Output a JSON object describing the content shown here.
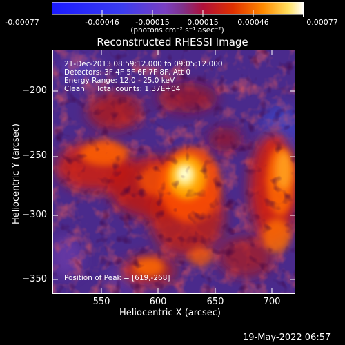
{
  "colorbar": {
    "tick_labels": [
      "-0.00077",
      "-0.00046",
      "-0.00015",
      "0.00015",
      "0.00046",
      "0.00077"
    ],
    "unit_label": "(photons cm⁻² s⁻¹ asec⁻²)"
  },
  "plot": {
    "title": "Reconstructed RHESSI Image",
    "x_label": "Heliocentric X (arcsec)",
    "y_label": "Heliocentric Y (arcsec)",
    "x_ticks": [
      "550",
      "600",
      "650",
      "700"
    ],
    "y_ticks": [
      "−200",
      "−250",
      "−300",
      "−350"
    ],
    "x_range": [
      517,
      710
    ],
    "y_range": [
      -367,
      -175
    ],
    "annotations": [
      "21-Dec-2013 08:59:12.000 to 09:05:12.000",
      "Detectors: 3F 4F 5F 6F 7F 8F, Att 0",
      "Energy Range: 12.0 - 25.0 keV",
      "Clean     Total counts: 1.37E+04"
    ],
    "peak_label": "Position of Peak = [619,-268]",
    "peak": [
      619,
      -268
    ]
  },
  "footer": {
    "timestamp": "19-May-2022 06:57"
  }
}
